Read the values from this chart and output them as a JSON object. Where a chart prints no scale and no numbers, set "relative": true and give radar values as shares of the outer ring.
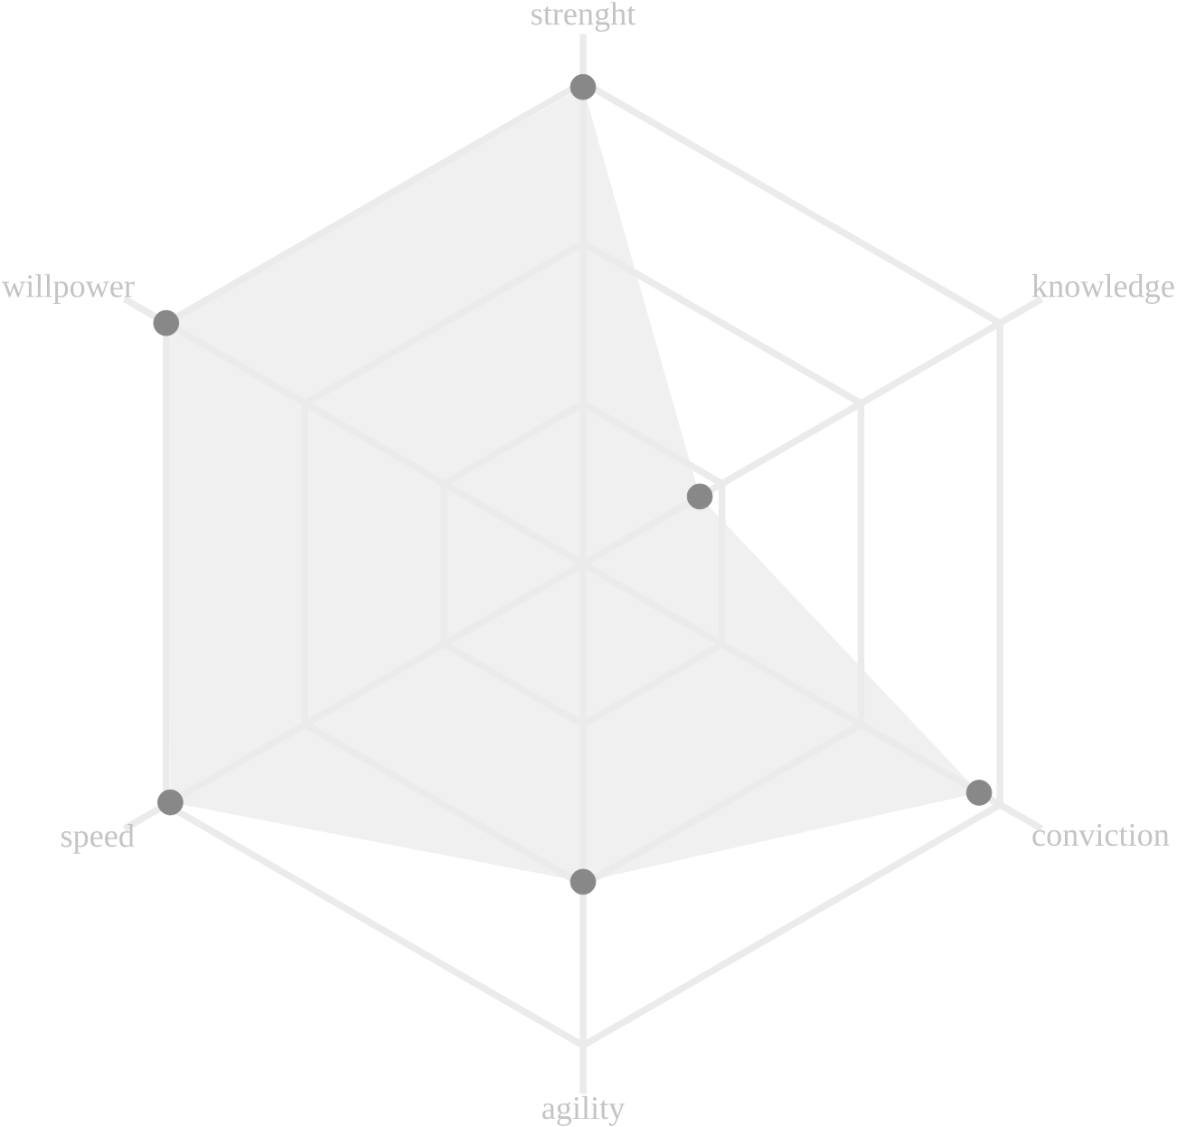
{
  "chart_data": {
    "type": "radar",
    "relative": true,
    "grid": true,
    "marker": "circle",
    "categories": [
      "strenght",
      "knowledge",
      "conviction",
      "agility",
      "speed",
      "willpower"
    ],
    "series": [
      {
        "color": "#888888",
        "values": [
          0.99,
          0.28,
          0.95,
          0.66,
          0.99,
          1.0
        ]
      }
    ]
  }
}
